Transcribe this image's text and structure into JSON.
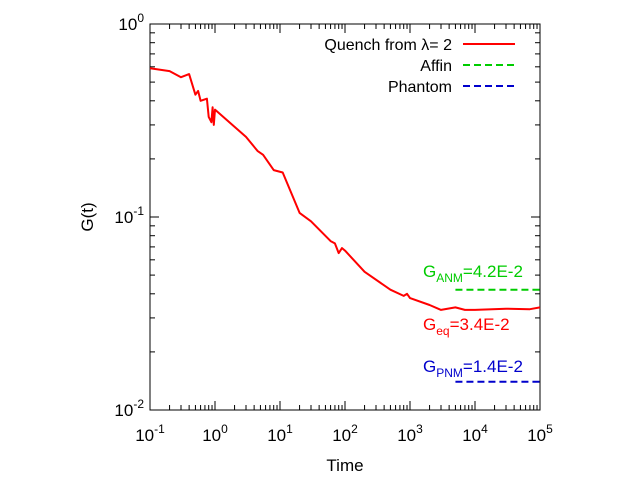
{
  "chart_data": {
    "type": "line",
    "xlabel": "Time",
    "ylabel": "G(t)",
    "x_scale": "log",
    "y_scale": "log",
    "xlim": [
      0.1,
      100000
    ],
    "ylim": [
      0.01,
      1
    ],
    "x_ticks": [
      {
        "base": "10",
        "exp": "-1"
      },
      {
        "base": "10",
        "exp": "0"
      },
      {
        "base": "10",
        "exp": "1"
      },
      {
        "base": "10",
        "exp": "2"
      },
      {
        "base": "10",
        "exp": "3"
      },
      {
        "base": "10",
        "exp": "4"
      },
      {
        "base": "10",
        "exp": "5"
      }
    ],
    "y_ticks": [
      {
        "base": "10",
        "exp": "-2"
      },
      {
        "base": "10",
        "exp": "-1"
      },
      {
        "base": "10",
        "exp": "0"
      }
    ],
    "grid": false,
    "legend_position": "top-right",
    "series": [
      {
        "name": "Quench from λ= 2",
        "color": "#ff0000",
        "style": "solid",
        "points": [
          [
            0.1,
            0.59
          ],
          [
            0.2,
            0.57
          ],
          [
            0.3,
            0.53
          ],
          [
            0.4,
            0.55
          ],
          [
            0.5,
            0.43
          ],
          [
            0.55,
            0.45
          ],
          [
            0.6,
            0.4
          ],
          [
            0.75,
            0.41
          ],
          [
            0.8,
            0.33
          ],
          [
            0.88,
            0.31
          ],
          [
            0.92,
            0.37
          ],
          [
            0.96,
            0.3
          ],
          [
            1.0,
            0.36
          ],
          [
            3.0,
            0.26
          ],
          [
            4.5,
            0.22
          ],
          [
            5.5,
            0.21
          ],
          [
            8.0,
            0.175
          ],
          [
            11,
            0.17
          ],
          [
            20,
            0.105
          ],
          [
            30,
            0.095
          ],
          [
            60,
            0.075
          ],
          [
            70,
            0.073
          ],
          [
            80,
            0.065
          ],
          [
            90,
            0.069
          ],
          [
            100,
            0.067
          ],
          [
            200,
            0.052
          ],
          [
            500,
            0.042
          ],
          [
            800,
            0.039
          ],
          [
            900,
            0.04
          ],
          [
            1000,
            0.038
          ],
          [
            2000,
            0.035
          ],
          [
            3000,
            0.033
          ],
          [
            5000,
            0.034
          ],
          [
            7000,
            0.033
          ],
          [
            10000,
            0.033
          ],
          [
            30000,
            0.0335
          ],
          [
            70000,
            0.0333
          ],
          [
            100000,
            0.034
          ]
        ]
      },
      {
        "name": "Affin",
        "color": "#00cc00",
        "style": "dashed",
        "y": 0.042,
        "x_range": [
          5000,
          100000
        ]
      },
      {
        "name": "Phantom",
        "color": "#0000cc",
        "style": "dashed",
        "y": 0.014,
        "x_range": [
          5000,
          100000
        ]
      }
    ],
    "annotations": [
      {
        "main": "G",
        "sub": "ANM",
        "rest": "=4.2E-2",
        "color": "#00cc00"
      },
      {
        "main": "G",
        "sub": "eq",
        "rest": "=3.4E-2",
        "color": "#ff0000"
      },
      {
        "main": "G",
        "sub": "PNM",
        "rest": "=1.4E-2",
        "color": "#0000cc"
      }
    ]
  }
}
